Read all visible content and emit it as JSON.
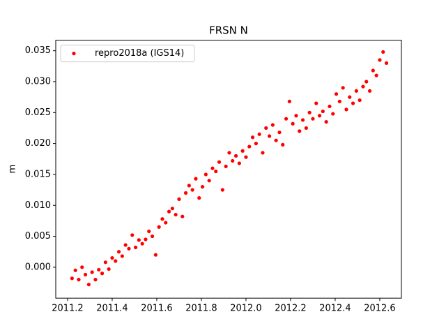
{
  "chart_data": {
    "type": "scatter",
    "title": "FRSN N",
    "y_label": "m",
    "xlim": [
      2011.147,
      2012.697
    ],
    "ylim": [
      -0.005,
      0.0367
    ],
    "xticks": [
      2011.2,
      2011.4,
      2011.6,
      2011.8,
      {
        "value": 2012.0,
        "label": "2012.0"
      },
      2012.2,
      2012.4,
      2012.6
    ],
    "yticks": [
      {
        "value": 0,
        "label": "0.000"
      },
      {
        "value": 0.005,
        "label": "0.005"
      },
      {
        "value": 0.01,
        "label": "0.010"
      },
      {
        "value": 0.015,
        "label": "0.015"
      },
      {
        "value": 0.02,
        "label": "0.020"
      },
      {
        "value": 0.025,
        "label": "0.025"
      },
      {
        "value": 0.03,
        "label": "0.030"
      },
      {
        "value": 0.035,
        "label": "0.035"
      }
    ],
    "legend": "upper left",
    "grid": false,
    "series": [
      {
        "name": "repro2018a (IGS14)",
        "color": "#ff0000",
        "x": [
          2011.22,
          2011.235,
          2011.25,
          2011.265,
          2011.28,
          2011.295,
          2011.31,
          2011.325,
          2011.34,
          2011.355,
          2011.37,
          2011.385,
          2011.4,
          2011.415,
          2011.43,
          2011.445,
          2011.46,
          2011.475,
          2011.49,
          2011.505,
          2011.52,
          2011.535,
          2011.55,
          2011.565,
          2011.58,
          2011.595,
          2011.61,
          2011.625,
          2011.64,
          2011.655,
          2011.67,
          2011.685,
          2011.7,
          2011.715,
          2011.73,
          2011.745,
          2011.76,
          2011.775,
          2011.79,
          2011.805,
          2011.82,
          2011.835,
          2011.85,
          2011.865,
          2011.88,
          2011.895,
          2011.91,
          2011.925,
          2011.94,
          2011.955,
          2011.97,
          2011.985,
          2012.0,
          2012.015,
          2012.03,
          2012.045,
          2012.06,
          2012.075,
          2012.09,
          2012.105,
          2012.12,
          2012.135,
          2012.15,
          2012.165,
          2012.18,
          2012.195,
          2012.21,
          2012.225,
          2012.24,
          2012.255,
          2012.27,
          2012.285,
          2012.3,
          2012.315,
          2012.33,
          2012.345,
          2012.36,
          2012.375,
          2012.39,
          2012.405,
          2012.42,
          2012.435,
          2012.45,
          2012.465,
          2012.48,
          2012.495,
          2012.51,
          2012.525,
          2012.54,
          2012.555,
          2012.57,
          2012.585,
          2012.6,
          2012.615,
          2012.63
        ],
        "values": [
          -0.0018,
          -0.0005,
          -0.002,
          0,
          -0.0012,
          -0.0028,
          -0.0008,
          -0.002,
          -0.0004,
          -0.001,
          0.0008,
          -0.0003,
          0.0015,
          0.001,
          0.0025,
          0.0018,
          0.0036,
          0.003,
          0.0052,
          0.0032,
          0.0044,
          0.0038,
          0.0045,
          0.0058,
          0.005,
          0.002,
          0.0065,
          0.0078,
          0.0072,
          0.009,
          0.0095,
          0.0085,
          0.011,
          0.0082,
          0.012,
          0.0132,
          0.0125,
          0.0143,
          0.0112,
          0.013,
          0.015,
          0.014,
          0.016,
          0.0155,
          0.017,
          0.0125,
          0.0163,
          0.0185,
          0.0172,
          0.018,
          0.0168,
          0.0188,
          0.0178,
          0.0195,
          0.021,
          0.02,
          0.0215,
          0.0185,
          0.0225,
          0.0212,
          0.023,
          0.0205,
          0.0218,
          0.0198,
          0.024,
          0.0268,
          0.0232,
          0.0245,
          0.022,
          0.0238,
          0.0225,
          0.025,
          0.024,
          0.0265,
          0.0245,
          0.0252,
          0.0235,
          0.026,
          0.0248,
          0.028,
          0.0268,
          0.029,
          0.0255,
          0.0275,
          0.0265,
          0.0285,
          0.027,
          0.0292,
          0.03,
          0.0285,
          0.0318,
          0.031,
          0.0335,
          0.0348,
          0.033
        ]
      }
    ]
  }
}
